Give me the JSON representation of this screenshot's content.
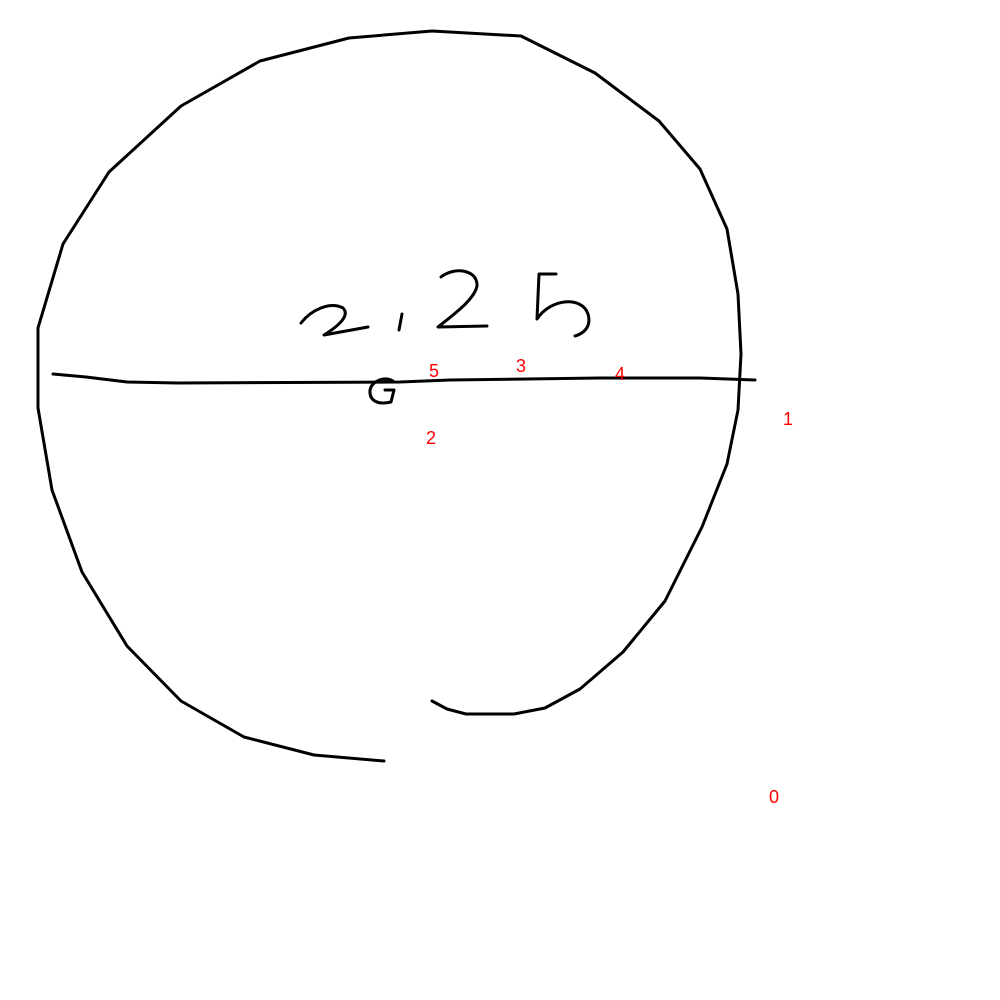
{
  "handwriting": {
    "value_label": "2.25",
    "center_label": "G"
  },
  "markers": [
    {
      "id": "0",
      "label": "0"
    },
    {
      "id": "1",
      "label": "1"
    },
    {
      "id": "2",
      "label": "2"
    },
    {
      "id": "3",
      "label": "3"
    },
    {
      "id": "4",
      "label": "4"
    },
    {
      "id": "5",
      "label": "5"
    }
  ],
  "colors": {
    "ink": "#000000",
    "marker": "#ff0000",
    "background": "#ffffff"
  }
}
